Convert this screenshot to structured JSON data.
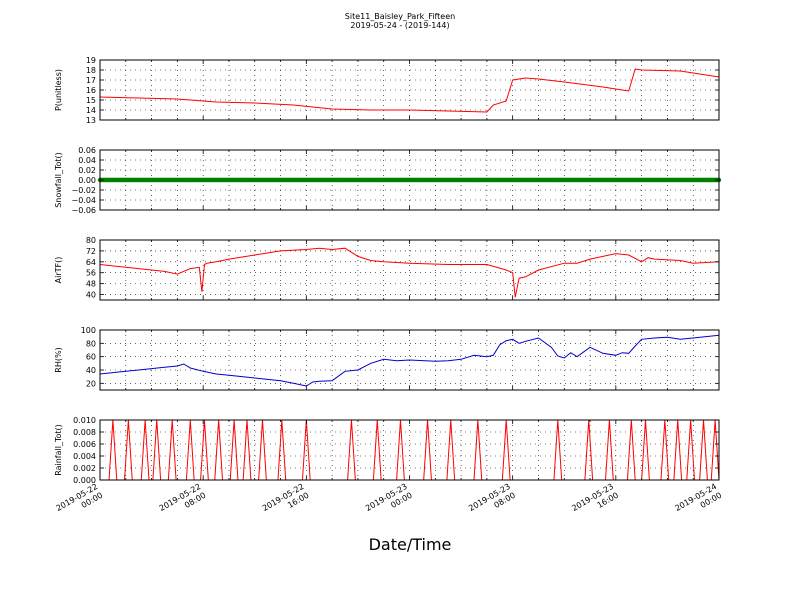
{
  "figure": {
    "title_line1": "Site11_Baisley_Park_Fifteen",
    "title_line2": "2019-05-24 - (2019-144)",
    "xlabel": "Date/Time",
    "x_ticks": [
      {
        "line1": "2019-05-22",
        "line2": "00:00"
      },
      {
        "line1": "2019-05-22",
        "line2": "08:00"
      },
      {
        "line1": "2019-05-22",
        "line2": "16:00"
      },
      {
        "line1": "2019-05-23",
        "line2": "00:00"
      },
      {
        "line1": "2019-05-23",
        "line2": "08:00"
      },
      {
        "line1": "2019-05-23",
        "line2": "16:00"
      },
      {
        "line1": "2019-05-24",
        "line2": "00:00"
      }
    ]
  },
  "chart_data": [
    {
      "type": "line",
      "ylabel": "P(unitless)",
      "ylim": [
        13,
        19
      ],
      "yticks": [
        "13",
        "14",
        "15",
        "16",
        "17",
        "18",
        "19"
      ],
      "grid": true,
      "color": "#ff0000",
      "x_hours": [
        0,
        3,
        6,
        9,
        12,
        15,
        18,
        21,
        24,
        27,
        30,
        30.5,
        31.5,
        32,
        33,
        34,
        36,
        39,
        40.5,
        41,
        41.5,
        42,
        45,
        48
      ],
      "values": [
        15.3,
        15.2,
        15.1,
        14.8,
        14.7,
        14.5,
        14.1,
        14.0,
        14.0,
        13.9,
        13.8,
        14.5,
        14.9,
        17.0,
        17.2,
        17.1,
        16.8,
        16.3,
        16.0,
        15.9,
        18.1,
        18.0,
        17.9,
        17.3
      ]
    },
    {
      "type": "scatter",
      "ylabel": "Snowfall_Tot()",
      "ylim": [
        -0.06,
        0.06
      ],
      "yticks": [
        "−0.06",
        "−0.04",
        "−0.02",
        "0.00",
        "0.02",
        "0.04",
        "0.06"
      ],
      "grid": true,
      "color": "#008000",
      "constant_value": 0.0,
      "x_range_hours": [
        0,
        48
      ]
    },
    {
      "type": "line",
      "ylabel": "AirTF()",
      "ylim": [
        36,
        80
      ],
      "yticks": [
        "40",
        "48",
        "56",
        "64",
        "72",
        "80"
      ],
      "grid": true,
      "color": "#ff0000",
      "x_hours": [
        0,
        3,
        5,
        6,
        7,
        7.7,
        7.9,
        8.1,
        8.3,
        9,
        10,
        12,
        14,
        16,
        17,
        18,
        19,
        20,
        21,
        22,
        24,
        27,
        30,
        31.5,
        32,
        32.2,
        32.5,
        33,
        34,
        36,
        37,
        38,
        39,
        40,
        41,
        42,
        42.5,
        43,
        45,
        46,
        48
      ],
      "values": [
        62,
        59,
        57,
        55,
        59,
        60,
        42,
        62,
        63,
        64,
        66,
        69,
        72,
        73,
        74,
        73,
        74,
        68,
        65,
        64,
        63,
        62,
        62,
        58,
        56,
        38,
        52,
        53,
        58,
        63,
        63,
        66,
        68,
        70,
        69,
        64,
        67,
        66,
        65,
        63,
        64
      ]
    },
    {
      "type": "line",
      "ylabel": "RH(%)",
      "ylim": [
        10,
        100
      ],
      "yticks": [
        "20",
        "40",
        "60",
        "80",
        "100"
      ],
      "grid": true,
      "color": "#0000cd",
      "x_hours": [
        0,
        2,
        3,
        5,
        6,
        6.5,
        7,
        8,
        9,
        10,
        12,
        14,
        15,
        16,
        16.5,
        17,
        18,
        19,
        20,
        21,
        22,
        23,
        24,
        26,
        27,
        28,
        29,
        30,
        30.5,
        31,
        31.5,
        32,
        32.5,
        33,
        34,
        35,
        35.5,
        36,
        36.5,
        37,
        38,
        39,
        40,
        40.5,
        41,
        41.5,
        42,
        43,
        44,
        45,
        46,
        48
      ],
      "values": [
        34,
        38,
        40,
        44,
        46,
        49,
        43,
        38,
        34,
        32,
        28,
        24,
        20,
        16,
        22,
        23,
        24,
        38,
        40,
        50,
        56,
        54,
        55,
        53,
        54,
        56,
        62,
        60,
        62,
        78,
        84,
        86,
        80,
        83,
        88,
        74,
        61,
        58,
        66,
        60,
        74,
        65,
        62,
        66,
        65,
        76,
        86,
        88,
        89,
        86,
        88,
        92
      ]
    },
    {
      "type": "line",
      "ylabel": "Rainfall_Tot()",
      "ylim": [
        0,
        0.01
      ],
      "yticks": [
        "0.000",
        "0.002",
        "0.004",
        "0.006",
        "0.008",
        "0.010"
      ],
      "grid": true,
      "color": "#ff0000",
      "spike_value": 0.01,
      "spike_hours": [
        1,
        2.2,
        3.5,
        4.4,
        5.6,
        7,
        8.1,
        9.2,
        10.4,
        11.4,
        12.6,
        14.1,
        16,
        19.5,
        21.5,
        23.3,
        25.4,
        27.2,
        29.3,
        31.5,
        35.5,
        37.9,
        39.5,
        41.2,
        42.3,
        43.8,
        44.8,
        45.8,
        46.8,
        47.7
      ]
    }
  ]
}
